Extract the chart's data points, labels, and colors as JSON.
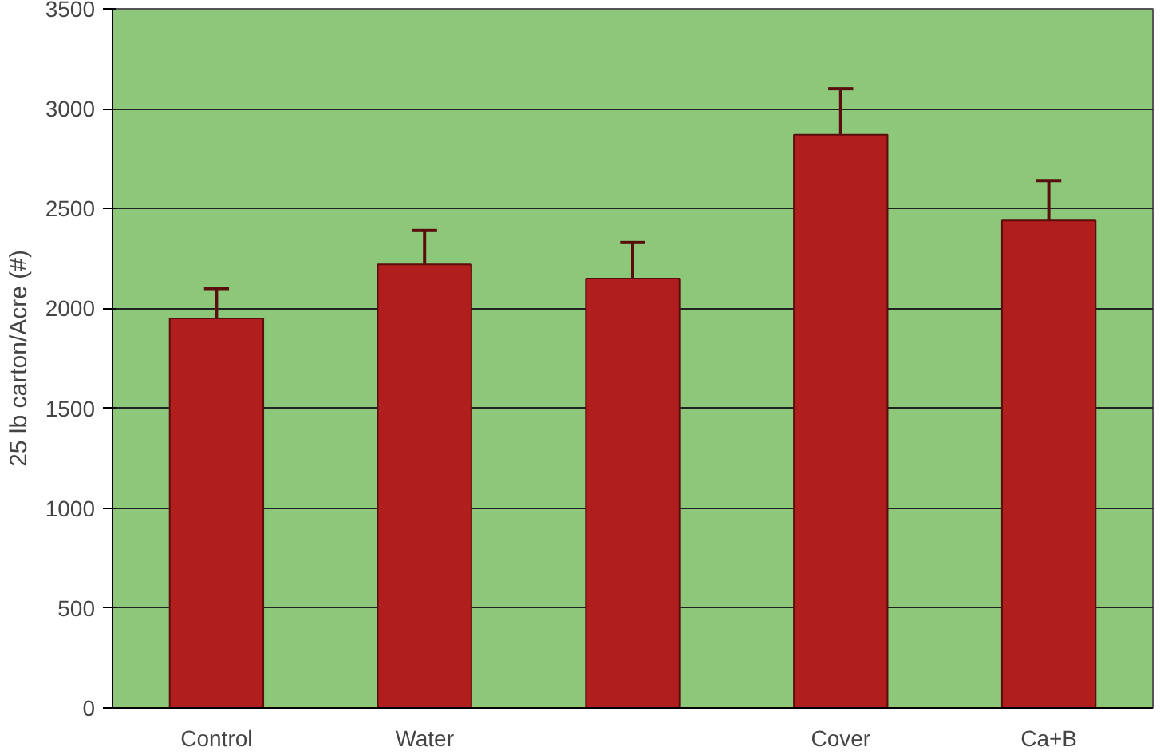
{
  "chart_data": {
    "type": "bar",
    "ylabel": "25 lb carton/Acre (#)",
    "categories": [
      "Control",
      "Water",
      null,
      "Cover",
      "Ca+B"
    ],
    "values": [
      1950,
      2220,
      2150,
      2870,
      2440
    ],
    "errors": [
      [
        1950,
        2100
      ],
      [
        2220,
        2390
      ],
      [
        2150,
        2330
      ],
      [
        2870,
        3100
      ],
      [
        2440,
        2640
      ]
    ],
    "color": "#b01e1e",
    "ylim": [
      0,
      3500
    ],
    "yticks": [
      0,
      500,
      1000,
      1500,
      2000,
      2500,
      3000,
      3500
    ],
    "grid": "y"
  }
}
